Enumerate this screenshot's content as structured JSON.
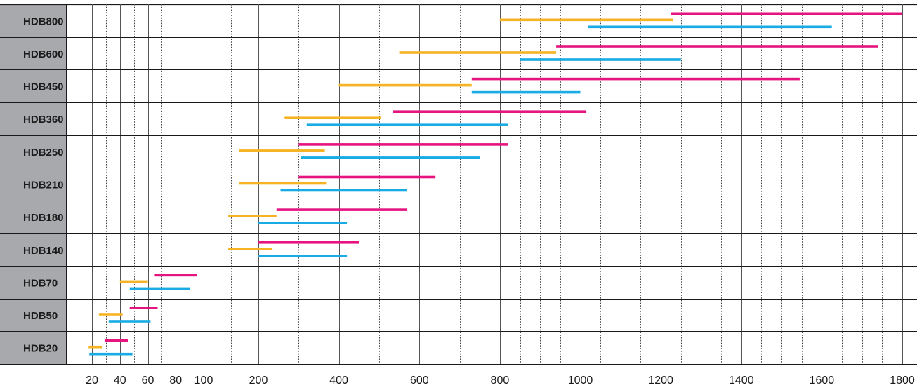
{
  "chart_data": {
    "type": "range-bar",
    "title": "",
    "xlabel": "",
    "ylabel": "",
    "x_ticks": [
      20,
      40,
      60,
      80,
      100,
      200,
      400,
      600,
      800,
      1000,
      1200,
      1400,
      1600,
      1800
    ],
    "x_tick_labels": [
      "20",
      "40",
      "60",
      "80",
      "100",
      "200",
      "400",
      "600",
      "800",
      "1000",
      "1200",
      "1400",
      "1600",
      "1800"
    ],
    "x_scale": "piecewise-linear",
    "x_range": [
      0,
      1800
    ],
    "grid": true,
    "legend": null,
    "colors": {
      "magenta": "#e5147f",
      "orange": "#f6b324",
      "blue": "#19abe3",
      "label_bg": "#a7a9ac"
    },
    "categories": [
      "HDB800",
      "HDB600",
      "HDB450",
      "HDB360",
      "HDB250",
      "HDB210",
      "HDB180",
      "HDB140",
      "HDB70",
      "HDB50",
      "HDB20"
    ],
    "ranges": [
      {
        "category": "HDB800",
        "magenta": [
          1225,
          1800
        ],
        "orange": [
          800,
          1230
        ],
        "blue": [
          1020,
          1625
        ]
      },
      {
        "category": "HDB600",
        "magenta": [
          940,
          1740
        ],
        "orange": [
          550,
          940
        ],
        "blue": [
          850,
          1250
        ]
      },
      {
        "category": "HDB450",
        "magenta": [
          730,
          1545
        ],
        "orange": [
          400,
          730
        ],
        "blue": [
          730,
          1000
        ]
      },
      {
        "category": "HDB360",
        "magenta": [
          535,
          1015
        ],
        "orange": [
          265,
          505
        ],
        "blue": [
          320,
          820
        ]
      },
      {
        "category": "HDB250",
        "magenta": [
          300,
          820
        ],
        "orange": [
          165,
          365
        ],
        "blue": [
          305,
          750
        ]
      },
      {
        "category": "HDB210",
        "magenta": [
          300,
          640
        ],
        "orange": [
          165,
          370
        ],
        "blue": [
          255,
          570
        ]
      },
      {
        "category": "HDB180",
        "magenta": [
          245,
          570
        ],
        "orange": [
          145,
          245
        ],
        "blue": [
          200,
          420
        ]
      },
      {
        "category": "HDB140",
        "magenta": [
          200,
          450
        ],
        "orange": [
          145,
          235
        ],
        "blue": [
          200,
          420
        ]
      },
      {
        "category": "HDB70",
        "magenta": [
          65,
          95
        ],
        "orange": [
          40,
          60
        ],
        "blue": [
          47,
          90
        ]
      },
      {
        "category": "HDB50",
        "magenta": [
          47,
          67
        ],
        "orange": [
          25,
          42
        ],
        "blue": [
          32,
          62
        ]
      },
      {
        "category": "HDB20",
        "magenta": [
          29,
          46
        ],
        "orange": [
          15,
          27
        ],
        "blue": [
          16,
          49
        ]
      }
    ]
  }
}
